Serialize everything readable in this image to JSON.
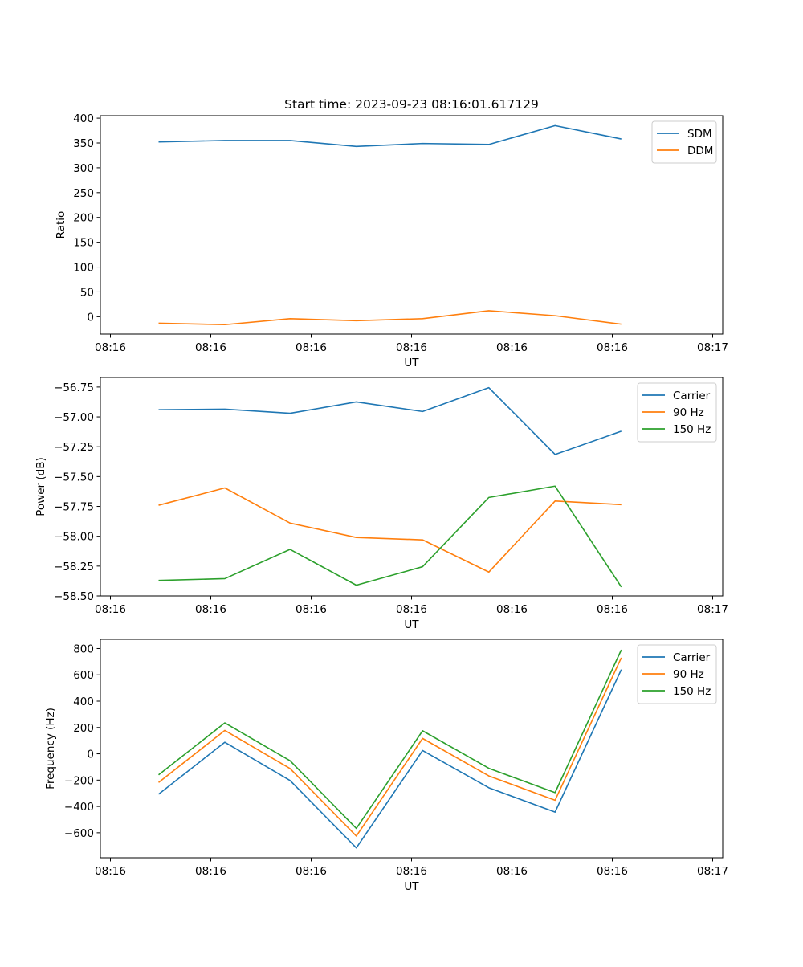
{
  "figure_title": "Start time: 2023-09-23 08:16:01.617129",
  "colors": {
    "blue": "#1f77b4",
    "orange": "#ff7f0e",
    "green": "#2ca02c"
  },
  "chart_data": [
    {
      "type": "line",
      "id": "ratio",
      "title": "Start time: 2023-09-23 08:16:01.617129",
      "xlabel": "UT",
      "ylabel": "Ratio",
      "x_ticks": [
        0,
        1,
        2,
        3,
        4,
        5,
        6
      ],
      "x_tick_labels": [
        "08:16",
        "08:16",
        "08:16",
        "08:16",
        "08:16",
        "08:16",
        "08:17"
      ],
      "xlim": [
        -0.1,
        6.1
      ],
      "ylim": [
        -35,
        405
      ],
      "y_ticks": [
        0,
        50,
        100,
        150,
        200,
        250,
        300,
        350,
        400
      ],
      "y_tick_labels": [
        "0",
        "50",
        "100",
        "150",
        "200",
        "250",
        "300",
        "350",
        "400"
      ],
      "x": [
        0.48,
        1.14,
        1.79,
        2.45,
        3.11,
        3.77,
        4.43,
        5.09
      ],
      "series": [
        {
          "name": "SDM",
          "color": "#1f77b4",
          "values": [
            352,
            355,
            355,
            343,
            349,
            347,
            385,
            358
          ]
        },
        {
          "name": "DDM",
          "color": "#ff7f0e",
          "values": [
            -13,
            -16,
            -4,
            -8,
            -4,
            12,
            2,
            -15
          ]
        }
      ],
      "legend": "top-right"
    },
    {
      "type": "line",
      "id": "power",
      "title": "",
      "xlabel": "UT",
      "ylabel": "Power (dB)",
      "x_ticks": [
        0,
        1,
        2,
        3,
        4,
        5,
        6
      ],
      "x_tick_labels": [
        "08:16",
        "08:16",
        "08:16",
        "08:16",
        "08:16",
        "08:16",
        "08:17"
      ],
      "xlim": [
        -0.1,
        6.1
      ],
      "ylim": [
        -58.5,
        -56.67
      ],
      "y_ticks": [
        -56.75,
        -57.0,
        -57.25,
        -57.5,
        -57.75,
        -58.0,
        -58.25,
        -58.5
      ],
      "y_tick_labels": [
        "−56.75",
        "−57.00",
        "−57.25",
        "−57.50",
        "−57.75",
        "−58.00",
        "−58.25",
        "−58.50"
      ],
      "x": [
        0.48,
        1.14,
        1.79,
        2.45,
        3.11,
        3.77,
        4.43,
        5.09
      ],
      "series": [
        {
          "name": "Carrier",
          "color": "#1f77b4",
          "values": [
            -56.94,
            -56.935,
            -56.97,
            -56.875,
            -56.955,
            -56.755,
            -57.315,
            -57.12
          ]
        },
        {
          "name": "90 Hz",
          "color": "#ff7f0e",
          "values": [
            -57.74,
            -57.595,
            -57.89,
            -58.01,
            -58.03,
            -58.3,
            -57.705,
            -57.735
          ]
        },
        {
          "name": "150 Hz",
          "color": "#2ca02c",
          "values": [
            -58.37,
            -58.355,
            -58.11,
            -58.41,
            -58.255,
            -57.675,
            -57.58,
            -58.425
          ]
        }
      ],
      "legend": "top-right"
    },
    {
      "type": "line",
      "id": "frequency",
      "title": "",
      "xlabel": "UT",
      "ylabel": "Frequency (Hz)",
      "x_ticks": [
        0,
        1,
        2,
        3,
        4,
        5,
        6
      ],
      "x_tick_labels": [
        "08:16",
        "08:16",
        "08:16",
        "08:16",
        "08:16",
        "08:16",
        "08:17"
      ],
      "xlim": [
        -0.1,
        6.1
      ],
      "ylim": [
        -790,
        870
      ],
      "y_ticks": [
        -600,
        -400,
        -200,
        0,
        200,
        400,
        600,
        800
      ],
      "y_tick_labels": [
        "−600",
        "−400",
        "−200",
        "0",
        "200",
        "400",
        "600",
        "800"
      ],
      "x": [
        0.48,
        1.14,
        1.79,
        2.45,
        3.11,
        3.77,
        4.43,
        5.09
      ],
      "series": [
        {
          "name": "Carrier",
          "color": "#1f77b4",
          "values": [
            -307,
            88,
            -203,
            -715,
            25,
            -258,
            -443,
            640
          ]
        },
        {
          "name": "90 Hz",
          "color": "#ff7f0e",
          "values": [
            -218,
            178,
            -112,
            -625,
            117,
            -168,
            -353,
            730
          ]
        },
        {
          "name": "150 Hz",
          "color": "#2ca02c",
          "values": [
            -160,
            235,
            -53,
            -567,
            175,
            -110,
            -295,
            790
          ]
        }
      ],
      "legend": "top-right"
    }
  ]
}
